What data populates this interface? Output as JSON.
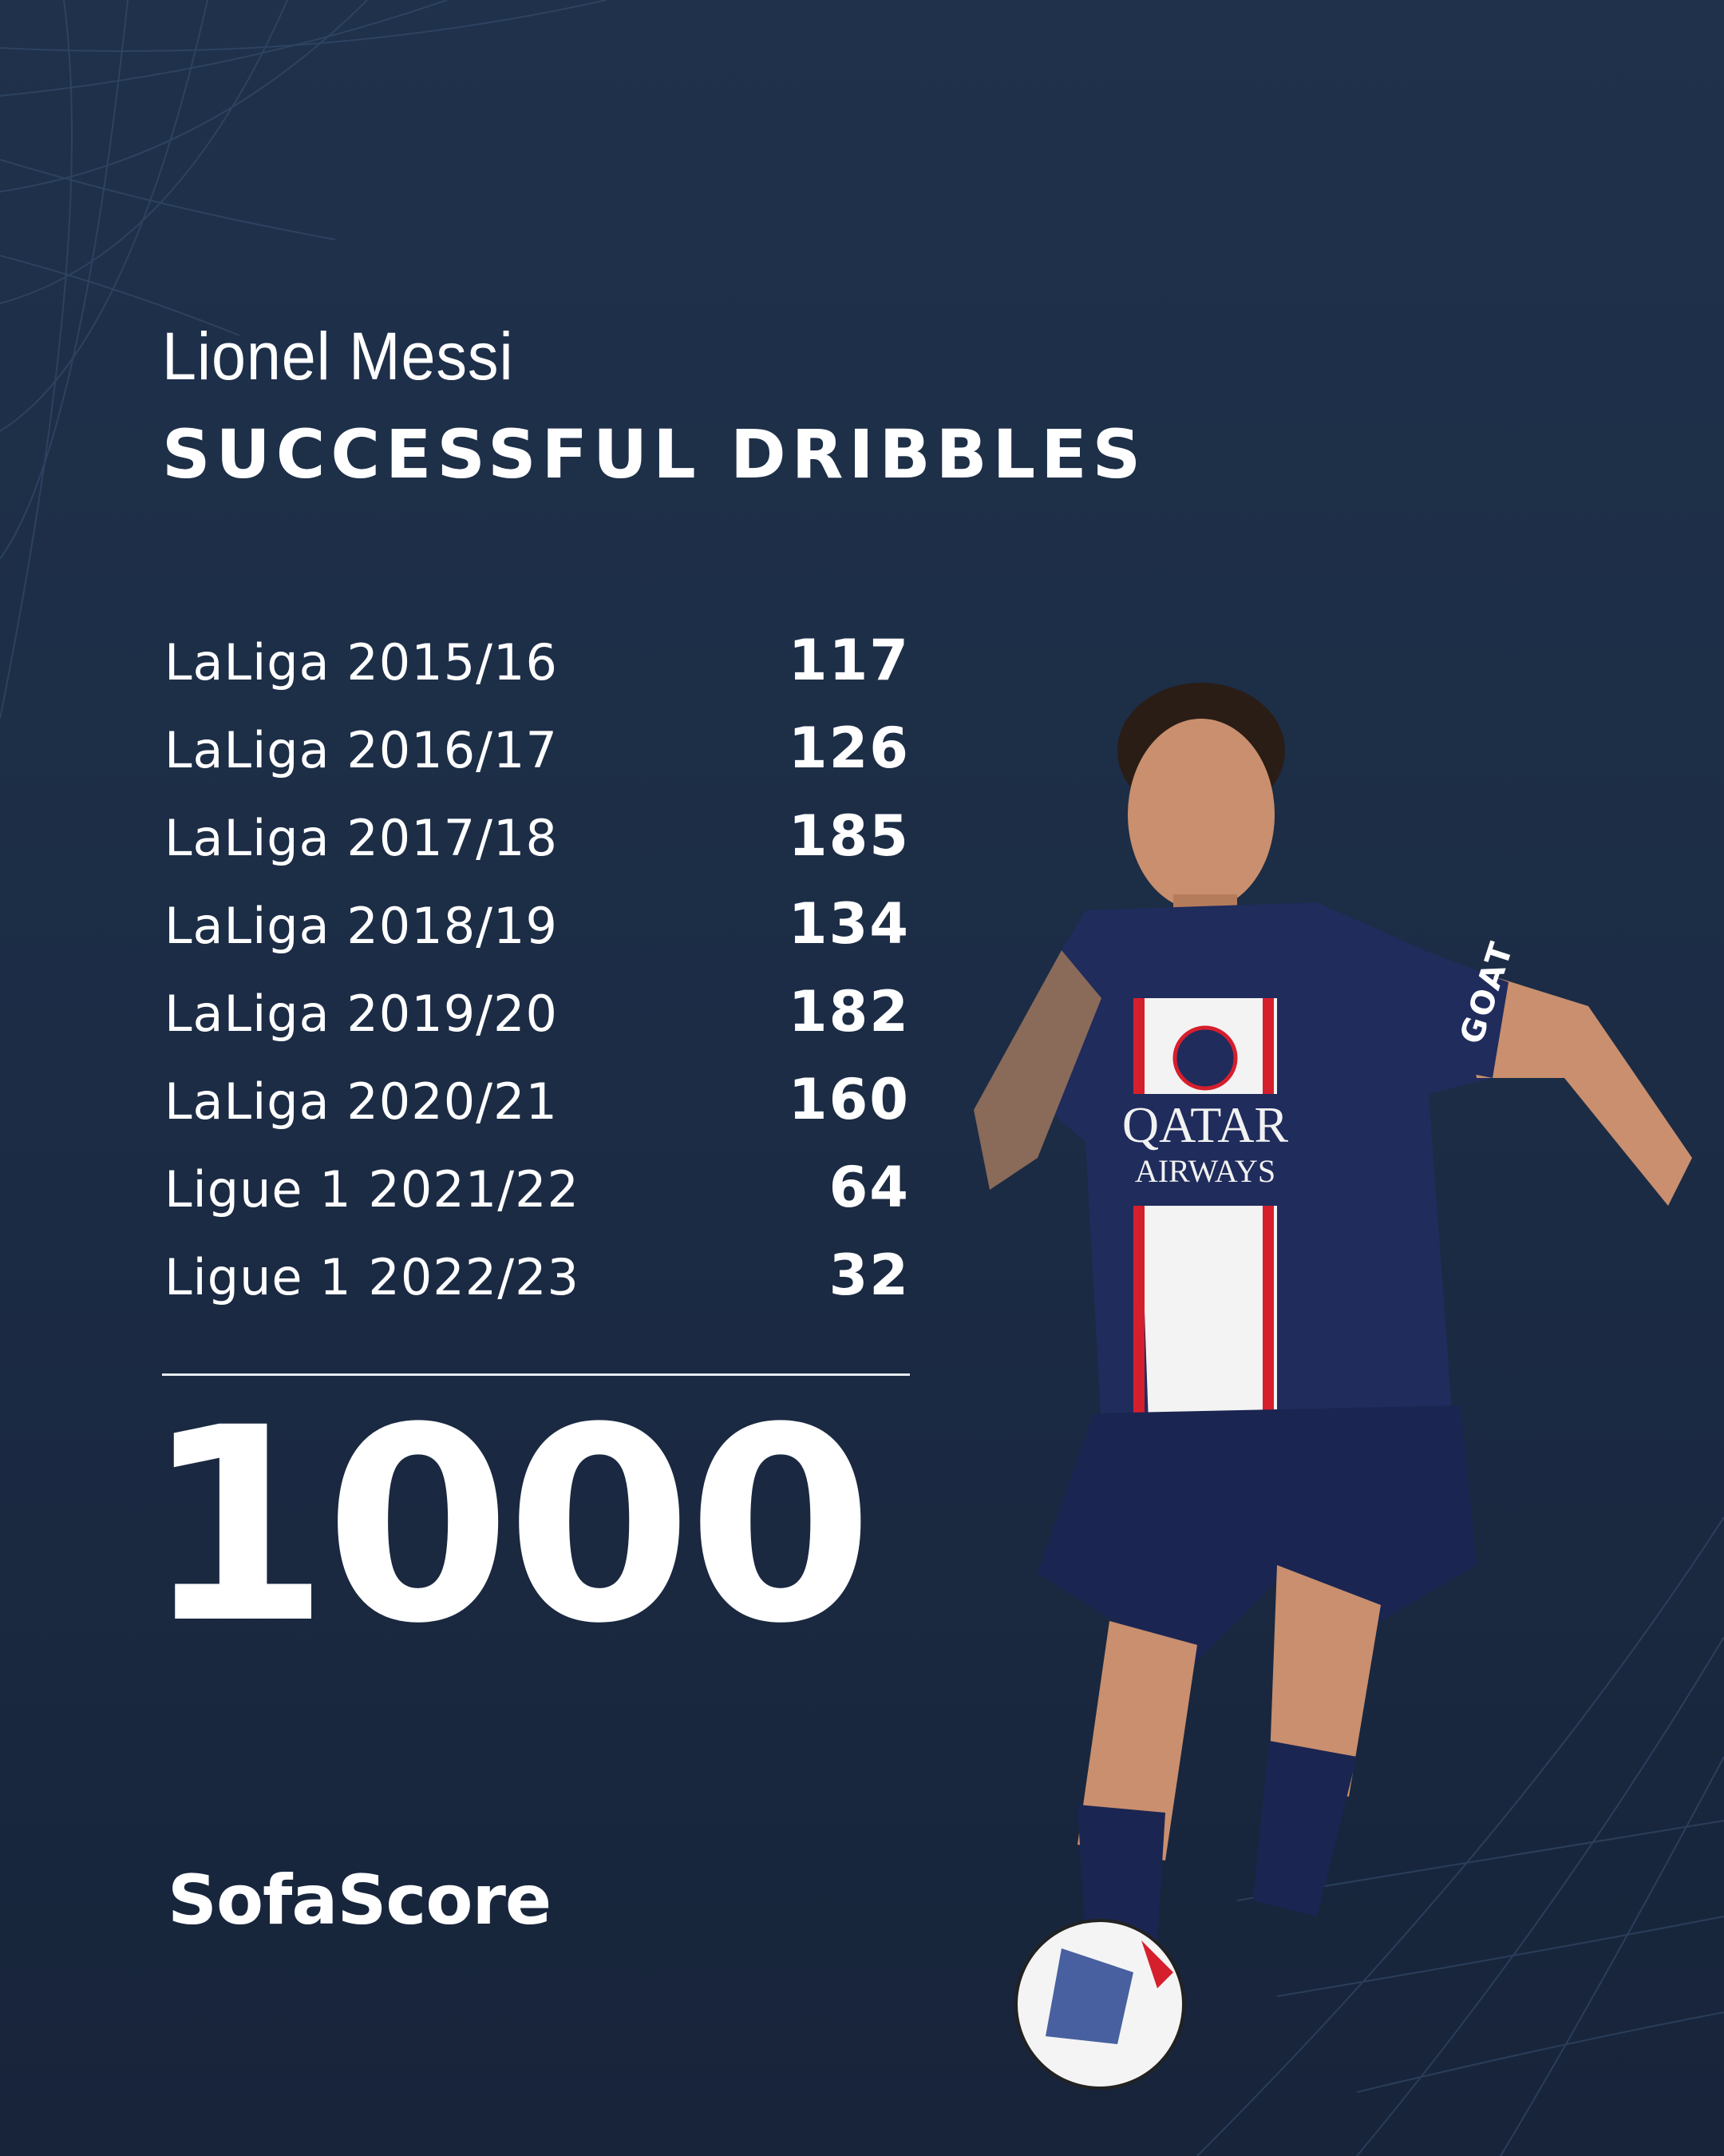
{
  "header": {
    "player_name": "Lionel Messi",
    "stat_title": "SUCCESSFUL DRIBBLES"
  },
  "seasons": [
    {
      "label": "LaLiga 2015/16",
      "value": "117"
    },
    {
      "label": "LaLiga 2016/17",
      "value": "126"
    },
    {
      "label": "LaLiga 2017/18",
      "value": "185"
    },
    {
      "label": "LaLiga 2018/19",
      "value": "134"
    },
    {
      "label": "LaLiga 2019/20",
      "value": "182"
    },
    {
      "label": "LaLiga 2020/21",
      "value": "160"
    },
    {
      "label": "Ligue 1 2021/22",
      "value": "64"
    },
    {
      "label": "Ligue 1 2022/23",
      "value": "32"
    }
  ],
  "total": "1000",
  "brand": "SofaScore",
  "photo": {
    "sponsor": "QATAR AIRWAYS",
    "sleeve": "GOAT"
  },
  "colors": {
    "background": "#1e3049",
    "text": "#ffffff",
    "jersey": "#1f2c5c",
    "stripe_red": "#d61f2c"
  }
}
